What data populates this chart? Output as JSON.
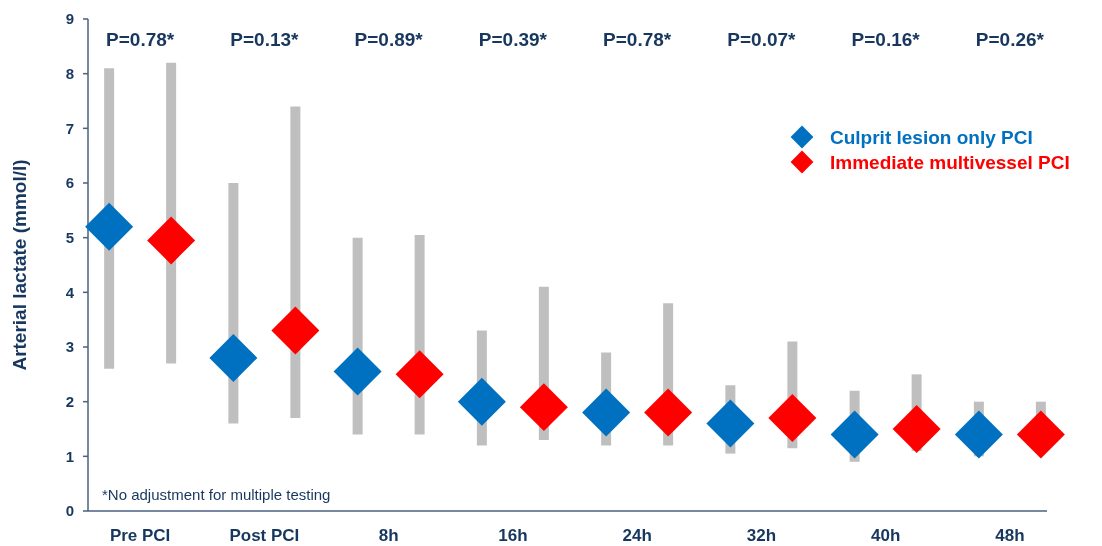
{
  "chart_data": {
    "type": "scatter",
    "ylabel": "Arterial lactate (mmol/l)",
    "categories": [
      "Pre PCI",
      "Post PCI",
      "8h",
      "16h",
      "24h",
      "32h",
      "40h",
      "48h"
    ],
    "series": [
      {
        "name": "Culprit lesion only PCI",
        "color": "#0070c0",
        "values": [
          5.2,
          2.8,
          2.55,
          2.0,
          1.8,
          1.6,
          1.4,
          1.4
        ],
        "errors": [
          [
            2.6,
            8.1
          ],
          [
            1.6,
            6.0
          ],
          [
            1.4,
            5.0
          ],
          [
            1.2,
            3.3
          ],
          [
            1.2,
            2.9
          ],
          [
            1.05,
            2.3
          ],
          [
            0.9,
            2.2
          ],
          [
            1.0,
            2.0
          ]
        ]
      },
      {
        "name": "Immediate multivessel PCI",
        "color": "#ff0000",
        "values": [
          4.95,
          3.3,
          2.5,
          1.9,
          1.8,
          1.7,
          1.5,
          1.4
        ],
        "errors": [
          [
            2.7,
            8.2
          ],
          [
            1.7,
            7.4
          ],
          [
            1.4,
            5.05
          ],
          [
            1.3,
            4.1
          ],
          [
            1.2,
            3.8
          ],
          [
            1.15,
            3.1
          ],
          [
            1.1,
            2.5
          ],
          [
            1.4,
            2.0
          ]
        ]
      }
    ],
    "ylim": [
      0,
      9
    ],
    "yticks": [
      0,
      1,
      2,
      3,
      4,
      5,
      6,
      7,
      8,
      9
    ],
    "grid": false,
    "legend": "top right",
    "marker": "diamond",
    "annotations": [
      "P=0.78*",
      "P=0.13*",
      "P=0.89*",
      "P=0.39*",
      "P=0.78*",
      "P=0.07*",
      "P=0.16*",
      "P=0.26*",
      "*No adjustment for multiple testing"
    ]
  }
}
